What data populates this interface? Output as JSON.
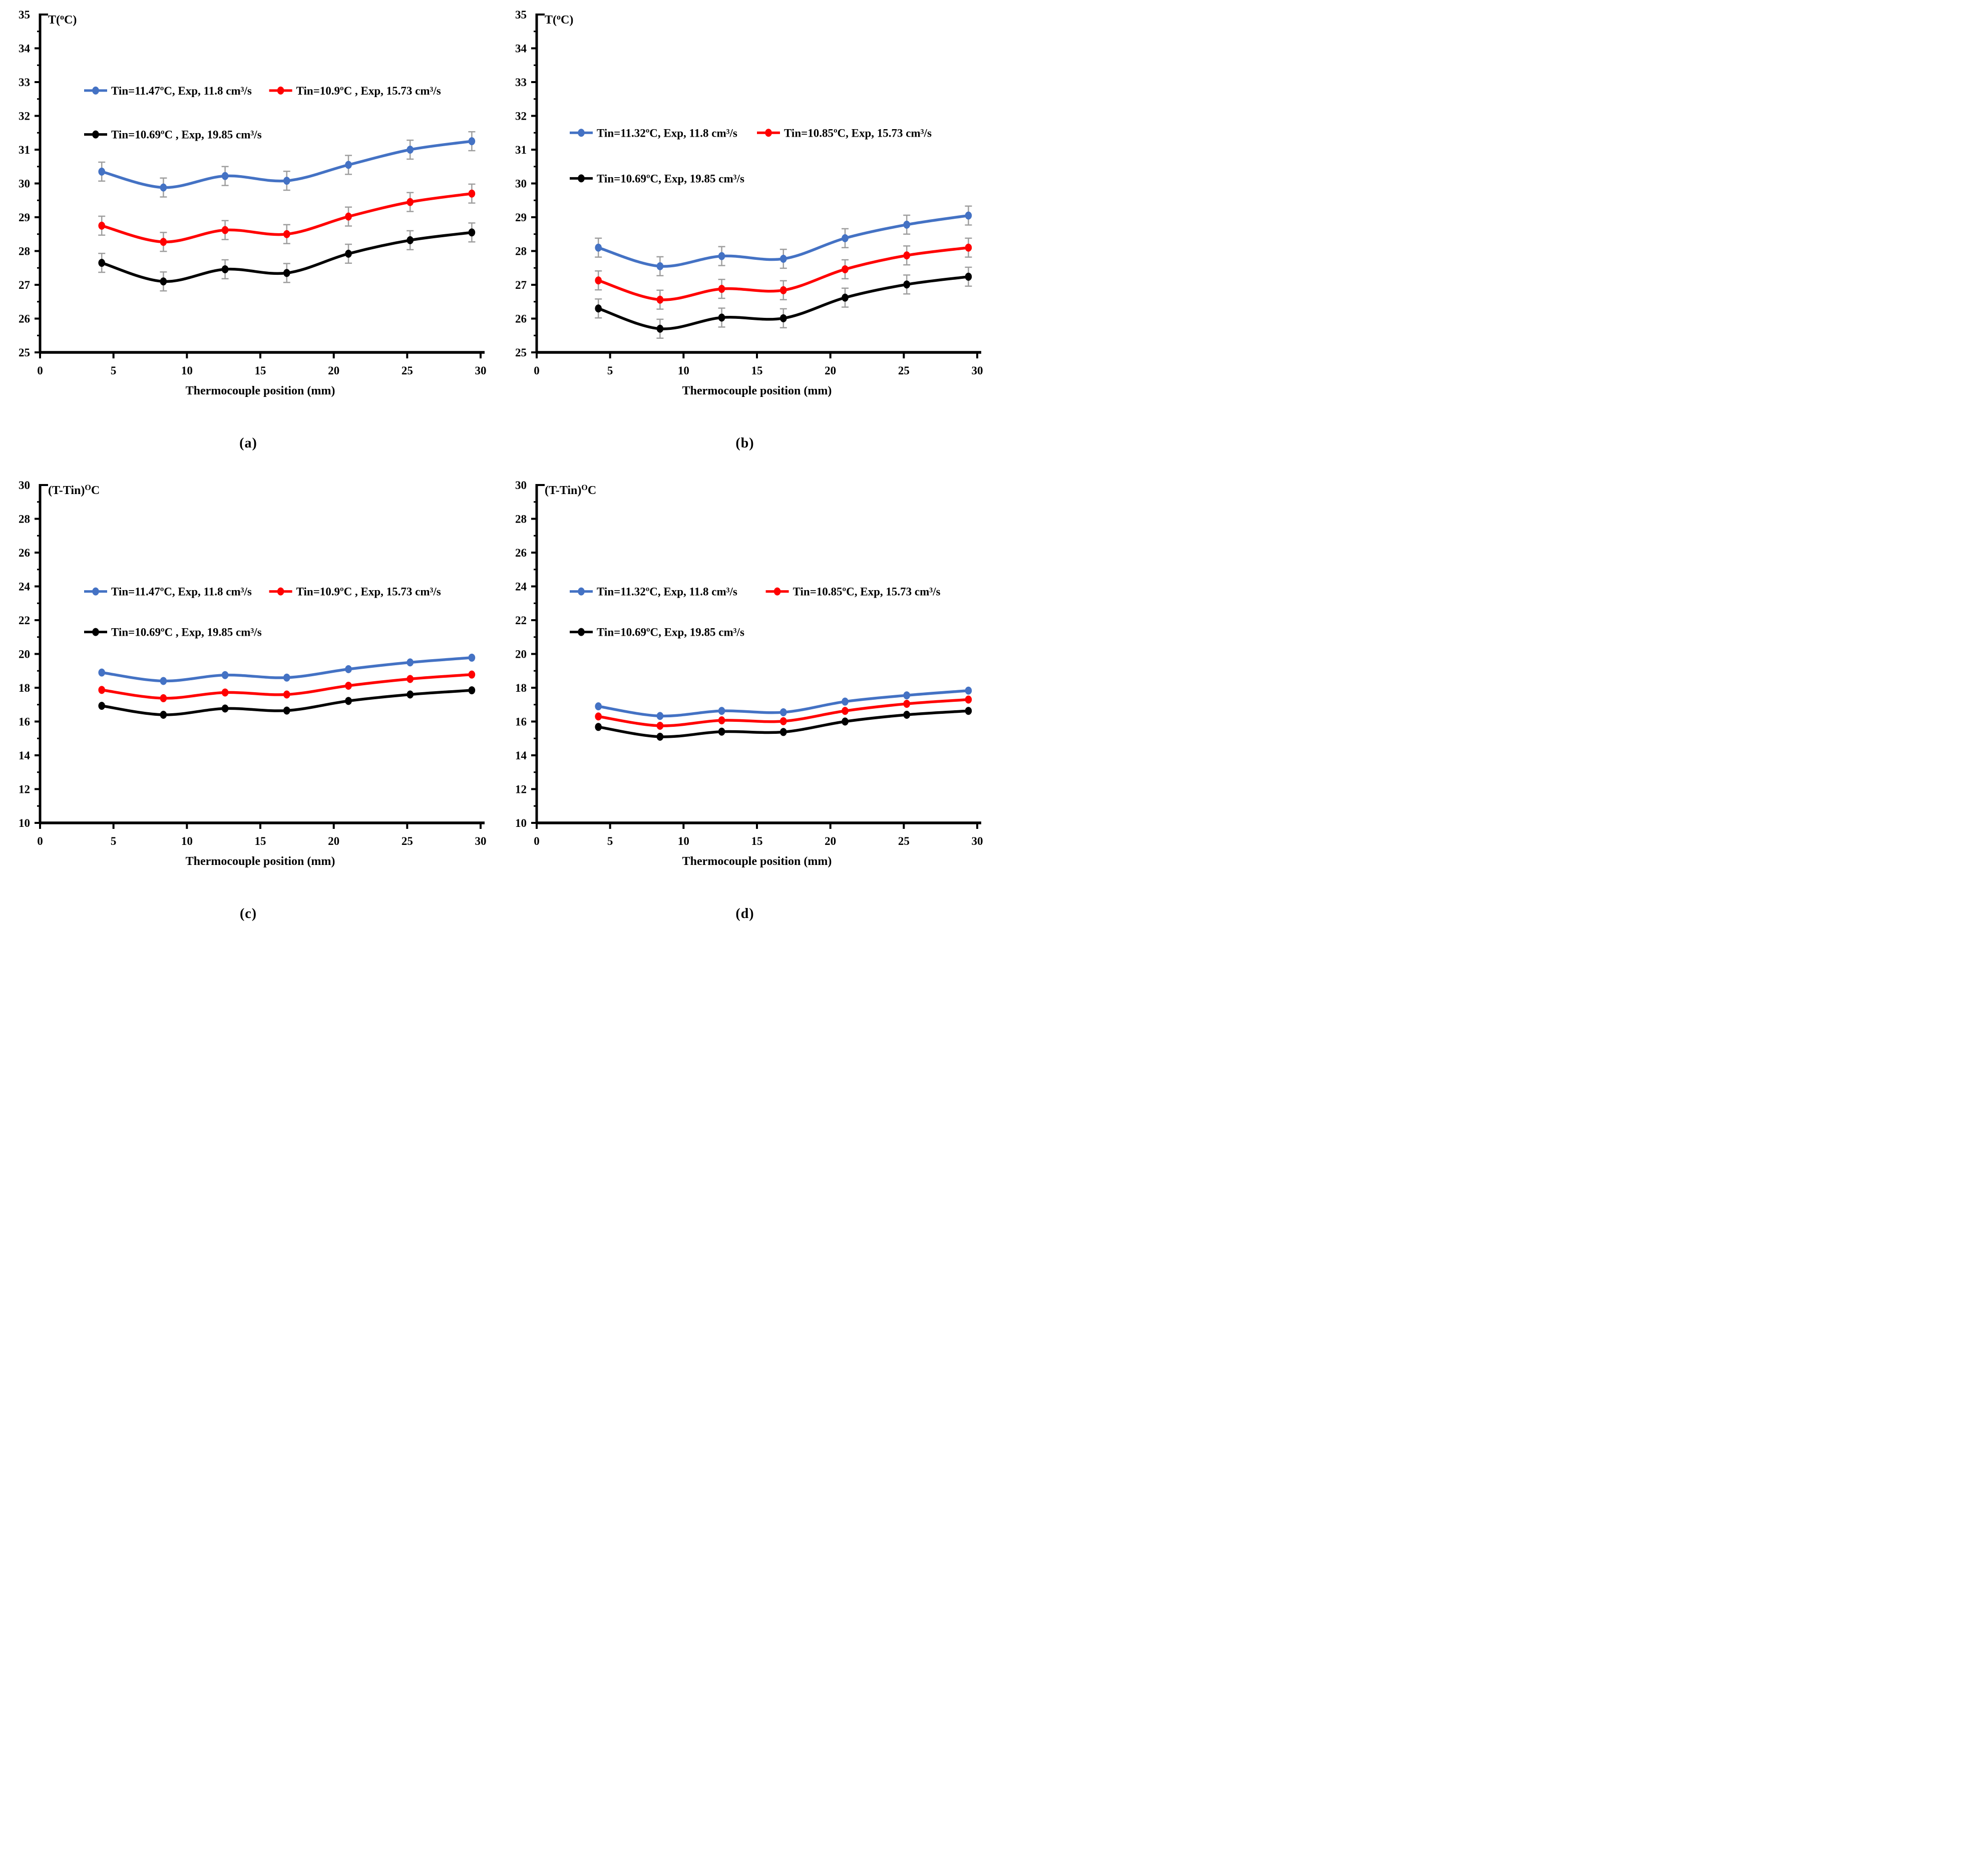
{
  "figure": {
    "background": "#ffffff",
    "axis_color": "#000000",
    "error_bar_color": "#9e9e9e"
  },
  "chart_data": [
    {
      "id": "a",
      "panel_label": "(a)",
      "type": "line",
      "xlabel": "Thermocouple position (mm)",
      "ylabel": {
        "pre": "T(",
        "sup": "o",
        "post": "C)"
      },
      "xlim": [
        0,
        30
      ],
      "xticks": [
        0,
        5,
        10,
        15,
        20,
        25,
        30
      ],
      "ylim": [
        25,
        35
      ],
      "ytick_step": 1,
      "grid": false,
      "x": [
        4.2,
        8.4,
        12.6,
        16.8,
        21.0,
        25.2,
        29.4
      ],
      "error_bar": 0.28,
      "series": [
        {
          "name": "Tin=11.47ºC, Exp, 11.8 cm³/s",
          "color": "#4472C4",
          "values": [
            30.35,
            29.88,
            30.22,
            30.08,
            30.55,
            31.0,
            31.25
          ]
        },
        {
          "name": "Tin=10.9ºC , Exp, 15.73 cm³/s",
          "color": "#FF0000",
          "values": [
            28.75,
            28.27,
            28.62,
            28.5,
            29.02,
            29.45,
            29.7
          ]
        },
        {
          "name": "Tin=10.69ºC , Exp, 19.85 cm³/s",
          "color": "#000000",
          "values": [
            27.65,
            27.1,
            27.46,
            27.35,
            27.92,
            28.32,
            28.55
          ]
        }
      ],
      "legend": {
        "position": "inside-top-left",
        "rows": [
          {
            "fy": 0.225,
            "items": [
              {
                "series": 0,
                "fx": 0.1
              },
              {
                "series": 1,
                "fx": 0.52
              }
            ]
          },
          {
            "fy": 0.355,
            "items": [
              {
                "series": 2,
                "fx": 0.1
              }
            ]
          }
        ]
      }
    },
    {
      "id": "b",
      "panel_label": "(b)",
      "type": "line",
      "xlabel": "Thermocouple position (mm)",
      "ylabel": {
        "pre": "T(",
        "sup": "o",
        "post": "C)"
      },
      "xlim": [
        0,
        30
      ],
      "xticks": [
        0,
        5,
        10,
        15,
        20,
        25,
        30
      ],
      "ylim": [
        25,
        35
      ],
      "ytick_step": 1,
      "grid": false,
      "x": [
        4.2,
        8.4,
        12.6,
        16.8,
        21.0,
        25.2,
        29.4
      ],
      "error_bar": 0.28,
      "series": [
        {
          "name": "Tin=11.32ºC, Exp, 11.8 cm³/s",
          "color": "#4472C4",
          "values": [
            28.1,
            27.55,
            27.85,
            27.77,
            28.38,
            28.78,
            29.05
          ]
        },
        {
          "name": "Tin=10.85ºC, Exp, 15.73 cm³/s",
          "color": "#FF0000",
          "values": [
            27.13,
            26.56,
            26.88,
            26.84,
            27.46,
            27.87,
            28.1
          ]
        },
        {
          "name": "Tin=10.69ºC, Exp, 19.85 cm³/s",
          "color": "#000000",
          "values": [
            26.3,
            25.7,
            26.03,
            26.01,
            26.62,
            27.01,
            27.24
          ]
        }
      ],
      "legend": {
        "position": "inside-middle-left",
        "rows": [
          {
            "fy": 0.35,
            "items": [
              {
                "series": 0,
                "fx": 0.075
              },
              {
                "series": 1,
                "fx": 0.5
              }
            ]
          },
          {
            "fy": 0.485,
            "items": [
              {
                "series": 2,
                "fx": 0.075
              }
            ]
          }
        ]
      }
    },
    {
      "id": "c",
      "panel_label": "(c)",
      "type": "line",
      "xlabel": "Thermocouple position (mm)",
      "ylabel": {
        "pre": "(T-Tin)",
        "sup": "O",
        "post": "C"
      },
      "xlim": [
        0,
        30
      ],
      "xticks": [
        0,
        5,
        10,
        15,
        20,
        25,
        30
      ],
      "ylim": [
        10,
        30
      ],
      "ytick_step": 2,
      "grid": false,
      "x": [
        4.2,
        8.4,
        12.6,
        16.8,
        21.0,
        25.2,
        29.4
      ],
      "error_bar": null,
      "series": [
        {
          "name": "Tin=11.47ºC, Exp, 11.8 cm³/s",
          "color": "#4472C4",
          "values": [
            18.9,
            18.4,
            18.75,
            18.6,
            19.1,
            19.5,
            19.78
          ]
        },
        {
          "name": "Tin=10.9ºC , Exp, 15.73 cm³/s",
          "color": "#FF0000",
          "values": [
            17.87,
            17.38,
            17.72,
            17.6,
            18.12,
            18.52,
            18.78
          ]
        },
        {
          "name": "Tin=10.69ºC , Exp, 19.85 cm³/s",
          "color": "#000000",
          "values": [
            16.93,
            16.4,
            16.77,
            16.65,
            17.22,
            17.6,
            17.85
          ]
        }
      ],
      "legend": {
        "position": "inside-middle-left",
        "rows": [
          {
            "fy": 0.315,
            "items": [
              {
                "series": 0,
                "fx": 0.1
              },
              {
                "series": 1,
                "fx": 0.52
              }
            ]
          },
          {
            "fy": 0.435,
            "items": [
              {
                "series": 2,
                "fx": 0.1
              }
            ]
          }
        ]
      }
    },
    {
      "id": "d",
      "panel_label": "(d)",
      "type": "line",
      "xlabel": "Thermocouple position (mm)",
      "ylabel": {
        "pre": "(T-Tin)",
        "sup": "O",
        "post": "C"
      },
      "xlim": [
        0,
        30
      ],
      "xticks": [
        0,
        5,
        10,
        15,
        20,
        25,
        30
      ],
      "ylim": [
        10,
        30
      ],
      "ytick_step": 2,
      "grid": false,
      "x": [
        4.2,
        8.4,
        12.6,
        16.8,
        21.0,
        25.2,
        29.4
      ],
      "error_bar": null,
      "series": [
        {
          "name": "Tin=11.32ºC, Exp, 11.8 cm³/s",
          "color": "#4472C4",
          "values": [
            16.9,
            16.33,
            16.63,
            16.55,
            17.18,
            17.55,
            17.83
          ]
        },
        {
          "name": "Tin=10.85ºC, Exp, 15.73 cm³/s",
          "color": "#FF0000",
          "values": [
            16.3,
            15.75,
            16.07,
            16.02,
            16.63,
            17.05,
            17.3
          ]
        },
        {
          "name": "Tin=10.69ºC, Exp, 19.85 cm³/s",
          "color": "#000000",
          "values": [
            15.68,
            15.1,
            15.4,
            15.38,
            16.0,
            16.4,
            16.63
          ]
        }
      ],
      "legend": {
        "position": "inside-middle-left",
        "rows": [
          {
            "fy": 0.315,
            "items": [
              {
                "series": 0,
                "fx": 0.075
              },
              {
                "series": 1,
                "fx": 0.52
              }
            ]
          },
          {
            "fy": 0.435,
            "items": [
              {
                "series": 2,
                "fx": 0.075
              }
            ]
          }
        ]
      }
    }
  ]
}
